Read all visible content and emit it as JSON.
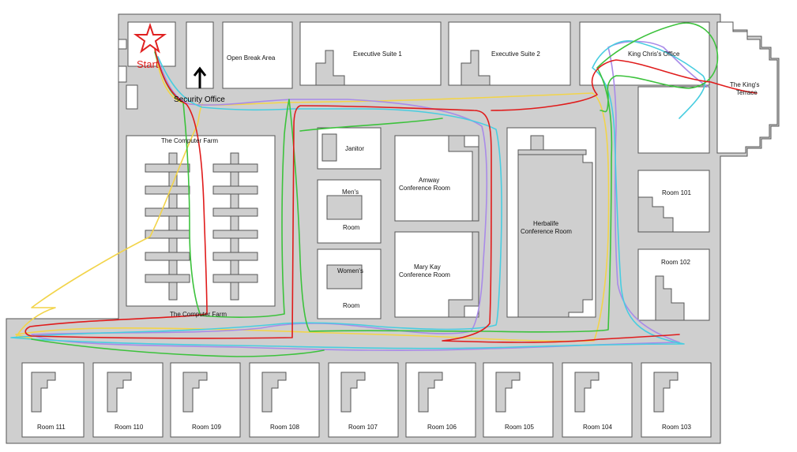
{
  "labels": {
    "start": "Start",
    "security_office": "Security Office",
    "open_break_area": "Open Break Area",
    "executive_suite_1": "Executive Suite 1",
    "executive_suite_2": "Executive Suite 2",
    "king_chris_office": "King Chris's Office",
    "kings_terrace_line1": "The King's",
    "kings_terrace_line2": "Terrace",
    "computer_farm_top": "The Computer Farm",
    "computer_farm_bottom": "The Computer Farm",
    "janitor": "Janitor",
    "mens": "Men's",
    "mens_room": "Room",
    "womens": "Women's",
    "womens_room": "Room",
    "amway_line1": "Amway",
    "amway_line2": "Conference Room",
    "mary_kay_line1": "Mary Kay",
    "mary_kay_line2": "Conference Room",
    "herbalife_line1": "Herbalife",
    "herbalife_line2": "Conference Room",
    "room_101": "Room 101",
    "room_102": "Room 102",
    "room_103": "Room 103",
    "room_104": "Room 104",
    "room_105": "Room 105",
    "room_106": "Room 106",
    "room_107": "Room 107",
    "room_108": "Room 108",
    "room_109": "Room 109",
    "room_110": "Room 110",
    "room_111": "Room 111"
  },
  "colors": {
    "path_red": "#e01b1b",
    "path_green": "#3cc23c",
    "path_purple": "#a98be8",
    "path_cyan": "#48cde0",
    "path_yellow": "#f2d44a",
    "start_marker": "#e02020",
    "arrow": "#000000"
  },
  "icons": {
    "start": "star-icon",
    "direction": "arrow-up-icon"
  }
}
